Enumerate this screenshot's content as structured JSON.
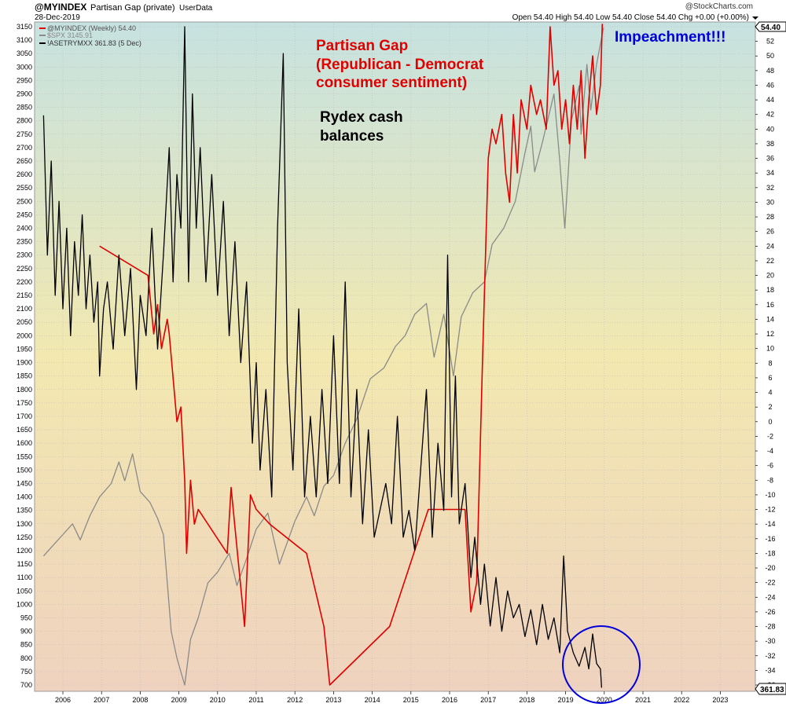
{
  "header": {
    "symbol": "@MYINDEX",
    "subtitle": "Partisan Gap (private)",
    "source": "UserData",
    "date": "28-Dec-2019",
    "quote": "Open 54.40  High 54.40  Low 54.40  Close 54.40  Chg +0.00 (+0.00%)",
    "watermark": "@StockCharts.com"
  },
  "legend": [
    {
      "text": "@MYINDEX (Weekly) 54.40",
      "color": "#e00000"
    },
    {
      "text": "$SPX 3145.91",
      "color": "#8a8a8a"
    },
    {
      "text": "!ASETRYMXX 361.83 (5 Dec)",
      "color": "#000000"
    }
  ],
  "annotations": {
    "partisan_1": "Partisan Gap",
    "partisan_2": "(Republican - Democrat",
    "partisan_3": "consumer sentiment)",
    "rydex_1": "Rydex cash",
    "rydex_2": "balances",
    "impeachment": "Impeachment!!!"
  },
  "price_tags": {
    "right": "54.40",
    "bottom": "361.83"
  },
  "colors": {
    "partisan": "#e00000",
    "spx": "#8a8a8a",
    "rydex": "#000000",
    "impeachment": "#0000dd",
    "bg_top": "#c6e2e0",
    "bg_mid": "#f2e8b0",
    "bg_bottom": "#efd2bf"
  },
  "chart_data": {
    "type": "line",
    "x_ticks": [
      "2006",
      "2007",
      "2008",
      "2009",
      "2010",
      "2011",
      "2012",
      "2013",
      "2014",
      "2015",
      "2016",
      "2017",
      "2018",
      "2019",
      "2020",
      "2021",
      "2022",
      "2023"
    ],
    "left_axis": {
      "min": 700,
      "max": 3150,
      "step": 50
    },
    "right_axis": {
      "min": -36,
      "max": 54,
      "step": 2
    },
    "grid": true,
    "series": [
      {
        "name": "@MYINDEX (Weekly) 54.40",
        "axis": "right",
        "points": [
          [
            2006.95,
            24
          ],
          [
            2008.2,
            20
          ],
          [
            2008.35,
            12
          ],
          [
            2008.45,
            16
          ],
          [
            2008.55,
            10
          ],
          [
            2008.7,
            14
          ],
          [
            2008.75,
            12
          ],
          [
            2008.85,
            6
          ],
          [
            2008.95,
            0
          ],
          [
            2009.05,
            2
          ],
          [
            2009.15,
            -8
          ],
          [
            2009.2,
            -18
          ],
          [
            2009.3,
            -8
          ],
          [
            2009.4,
            -14
          ],
          [
            2009.5,
            -12
          ],
          [
            2010.25,
            -18
          ],
          [
            2010.35,
            -9
          ],
          [
            2010.7,
            -28
          ],
          [
            2010.85,
            -10
          ],
          [
            2011.0,
            -12
          ],
          [
            2011.35,
            -14
          ],
          [
            2012.3,
            -18
          ],
          [
            2012.75,
            -28
          ],
          [
            2012.9,
            -36
          ],
          [
            2014.45,
            -28
          ],
          [
            2014.95,
            -20
          ],
          [
            2015.45,
            -12
          ],
          [
            2016.4,
            -12
          ],
          [
            2016.55,
            -26
          ],
          [
            2016.7,
            -22
          ],
          [
            2016.85,
            8
          ],
          [
            2017.0,
            36
          ],
          [
            2017.1,
            40
          ],
          [
            2017.2,
            38
          ],
          [
            2017.35,
            42
          ],
          [
            2017.45,
            34
          ],
          [
            2017.55,
            30
          ],
          [
            2017.65,
            42
          ],
          [
            2017.75,
            34
          ],
          [
            2017.85,
            44
          ],
          [
            2018.0,
            40
          ],
          [
            2018.1,
            46
          ],
          [
            2018.25,
            42
          ],
          [
            2018.35,
            44
          ],
          [
            2018.5,
            40
          ],
          [
            2018.6,
            54
          ],
          [
            2018.7,
            46
          ],
          [
            2018.8,
            48
          ],
          [
            2018.9,
            40
          ],
          [
            2019.0,
            44
          ],
          [
            2019.1,
            38
          ],
          [
            2019.2,
            46
          ],
          [
            2019.3,
            40
          ],
          [
            2019.4,
            48
          ],
          [
            2019.5,
            36
          ],
          [
            2019.6,
            44
          ],
          [
            2019.7,
            50
          ],
          [
            2019.8,
            42
          ],
          [
            2019.9,
            46
          ],
          [
            2019.95,
            54.4
          ]
        ]
      },
      {
        "name": "$SPX 3145.91",
        "axis": "left",
        "points": [
          [
            2005.5,
            1180
          ],
          [
            2005.75,
            1220
          ],
          [
            2006.0,
            1260
          ],
          [
            2006.25,
            1300
          ],
          [
            2006.45,
            1240
          ],
          [
            2006.7,
            1330
          ],
          [
            2006.95,
            1400
          ],
          [
            2007.25,
            1450
          ],
          [
            2007.45,
            1530
          ],
          [
            2007.6,
            1460
          ],
          [
            2007.8,
            1560
          ],
          [
            2008.0,
            1420
          ],
          [
            2008.25,
            1380
          ],
          [
            2008.45,
            1320
          ],
          [
            2008.6,
            1260
          ],
          [
            2008.8,
            900
          ],
          [
            2008.95,
            800
          ],
          [
            2009.15,
            700
          ],
          [
            2009.3,
            870
          ],
          [
            2009.5,
            950
          ],
          [
            2009.75,
            1080
          ],
          [
            2010.0,
            1120
          ],
          [
            2010.3,
            1190
          ],
          [
            2010.5,
            1070
          ],
          [
            2010.75,
            1170
          ],
          [
            2011.0,
            1280
          ],
          [
            2011.3,
            1340
          ],
          [
            2011.6,
            1150
          ],
          [
            2011.8,
            1230
          ],
          [
            2012.0,
            1310
          ],
          [
            2012.3,
            1400
          ],
          [
            2012.5,
            1330
          ],
          [
            2012.75,
            1440
          ],
          [
            2013.0,
            1480
          ],
          [
            2013.3,
            1600
          ],
          [
            2013.6,
            1690
          ],
          [
            2013.95,
            1840
          ],
          [
            2014.3,
            1880
          ],
          [
            2014.6,
            1960
          ],
          [
            2014.85,
            2000
          ],
          [
            2015.1,
            2080
          ],
          [
            2015.4,
            2120
          ],
          [
            2015.6,
            1920
          ],
          [
            2015.85,
            2080
          ],
          [
            2016.1,
            1850
          ],
          [
            2016.3,
            2070
          ],
          [
            2016.6,
            2160
          ],
          [
            2016.9,
            2200
          ],
          [
            2017.1,
            2340
          ],
          [
            2017.4,
            2400
          ],
          [
            2017.7,
            2500
          ],
          [
            2017.95,
            2680
          ],
          [
            2018.1,
            2780
          ],
          [
            2018.2,
            2610
          ],
          [
            2018.4,
            2720
          ],
          [
            2018.7,
            2900
          ],
          [
            2018.85,
            2650
          ],
          [
            2018.98,
            2400
          ],
          [
            2019.15,
            2800
          ],
          [
            2019.35,
            2930
          ],
          [
            2019.4,
            2750
          ],
          [
            2019.55,
            3010
          ],
          [
            2019.65,
            2840
          ],
          [
            2019.8,
            3010
          ],
          [
            2019.98,
            3146
          ]
        ]
      },
      {
        "name": "!ASETRYMXX 361.83 (5 Dec)",
        "axis": "left",
        "points": [
          [
            2005.5,
            2820
          ],
          [
            2005.6,
            2300
          ],
          [
            2005.7,
            2650
          ],
          [
            2005.8,
            2150
          ],
          [
            2005.9,
            2500
          ],
          [
            2006.0,
            2100
          ],
          [
            2006.1,
            2400
          ],
          [
            2006.2,
            2000
          ],
          [
            2006.3,
            2350
          ],
          [
            2006.4,
            2150
          ],
          [
            2006.5,
            2450
          ],
          [
            2006.6,
            2100
          ],
          [
            2006.7,
            2300
          ],
          [
            2006.8,
            2050
          ],
          [
            2006.9,
            2200
          ],
          [
            2006.95,
            1850
          ],
          [
            2007.05,
            2100
          ],
          [
            2007.15,
            2200
          ],
          [
            2007.3,
            1950
          ],
          [
            2007.45,
            2300
          ],
          [
            2007.6,
            2000
          ],
          [
            2007.75,
            2250
          ],
          [
            2007.9,
            1800
          ],
          [
            2008.0,
            2150
          ],
          [
            2008.15,
            2000
          ],
          [
            2008.3,
            2400
          ],
          [
            2008.45,
            1950
          ],
          [
            2008.6,
            2300
          ],
          [
            2008.75,
            2700
          ],
          [
            2008.85,
            2200
          ],
          [
            2008.95,
            2600
          ],
          [
            2009.05,
            2400
          ],
          [
            2009.15,
            3150
          ],
          [
            2009.25,
            2200
          ],
          [
            2009.35,
            2900
          ],
          [
            2009.45,
            2400
          ],
          [
            2009.55,
            2700
          ],
          [
            2009.7,
            2200
          ],
          [
            2009.85,
            2600
          ],
          [
            2010.0,
            2150
          ],
          [
            2010.15,
            2500
          ],
          [
            2010.3,
            2000
          ],
          [
            2010.45,
            2350
          ],
          [
            2010.6,
            1900
          ],
          [
            2010.75,
            2200
          ],
          [
            2010.9,
            1600
          ],
          [
            2011.0,
            1900
          ],
          [
            2011.1,
            1500
          ],
          [
            2011.25,
            1800
          ],
          [
            2011.4,
            1400
          ],
          [
            2011.55,
            2400
          ],
          [
            2011.7,
            3050
          ],
          [
            2011.8,
            1900
          ],
          [
            2011.95,
            1500
          ],
          [
            2012.1,
            2100
          ],
          [
            2012.25,
            1400
          ],
          [
            2012.4,
            1700
          ],
          [
            2012.55,
            1400
          ],
          [
            2012.7,
            1800
          ],
          [
            2012.85,
            1450
          ],
          [
            2013.0,
            2000
          ],
          [
            2013.15,
            1450
          ],
          [
            2013.3,
            2200
          ],
          [
            2013.45,
            1400
          ],
          [
            2013.6,
            1800
          ],
          [
            2013.75,
            1300
          ],
          [
            2013.9,
            1650
          ],
          [
            2014.05,
            1250
          ],
          [
            2014.2,
            1350
          ],
          [
            2014.35,
            1450
          ],
          [
            2014.5,
            1300
          ],
          [
            2014.65,
            1700
          ],
          [
            2014.8,
            1250
          ],
          [
            2014.95,
            1350
          ],
          [
            2015.1,
            1200
          ],
          [
            2015.25,
            1500
          ],
          [
            2015.4,
            1800
          ],
          [
            2015.55,
            1250
          ],
          [
            2015.7,
            1600
          ],
          [
            2015.85,
            1350
          ],
          [
            2015.95,
            2300
          ],
          [
            2016.05,
            1400
          ],
          [
            2016.15,
            1850
          ],
          [
            2016.25,
            1300
          ],
          [
            2016.4,
            1450
          ],
          [
            2016.55,
            1100
          ],
          [
            2016.65,
            1250
          ],
          [
            2016.8,
            1000
          ],
          [
            2016.9,
            1150
          ],
          [
            2017.05,
            920
          ],
          [
            2017.2,
            1100
          ],
          [
            2017.35,
            900
          ],
          [
            2017.5,
            1050
          ],
          [
            2017.65,
            950
          ],
          [
            2017.8,
            1000
          ],
          [
            2017.95,
            880
          ],
          [
            2018.1,
            980
          ],
          [
            2018.25,
            850
          ],
          [
            2018.4,
            1000
          ],
          [
            2018.55,
            870
          ],
          [
            2018.7,
            950
          ],
          [
            2018.85,
            820
          ],
          [
            2018.95,
            1180
          ],
          [
            2019.05,
            900
          ],
          [
            2019.2,
            820
          ],
          [
            2019.35,
            770
          ],
          [
            2019.5,
            840
          ],
          [
            2019.6,
            760
          ],
          [
            2019.7,
            890
          ],
          [
            2019.8,
            780
          ],
          [
            2019.9,
            760
          ],
          [
            2019.93,
            690
          ]
        ]
      }
    ]
  }
}
